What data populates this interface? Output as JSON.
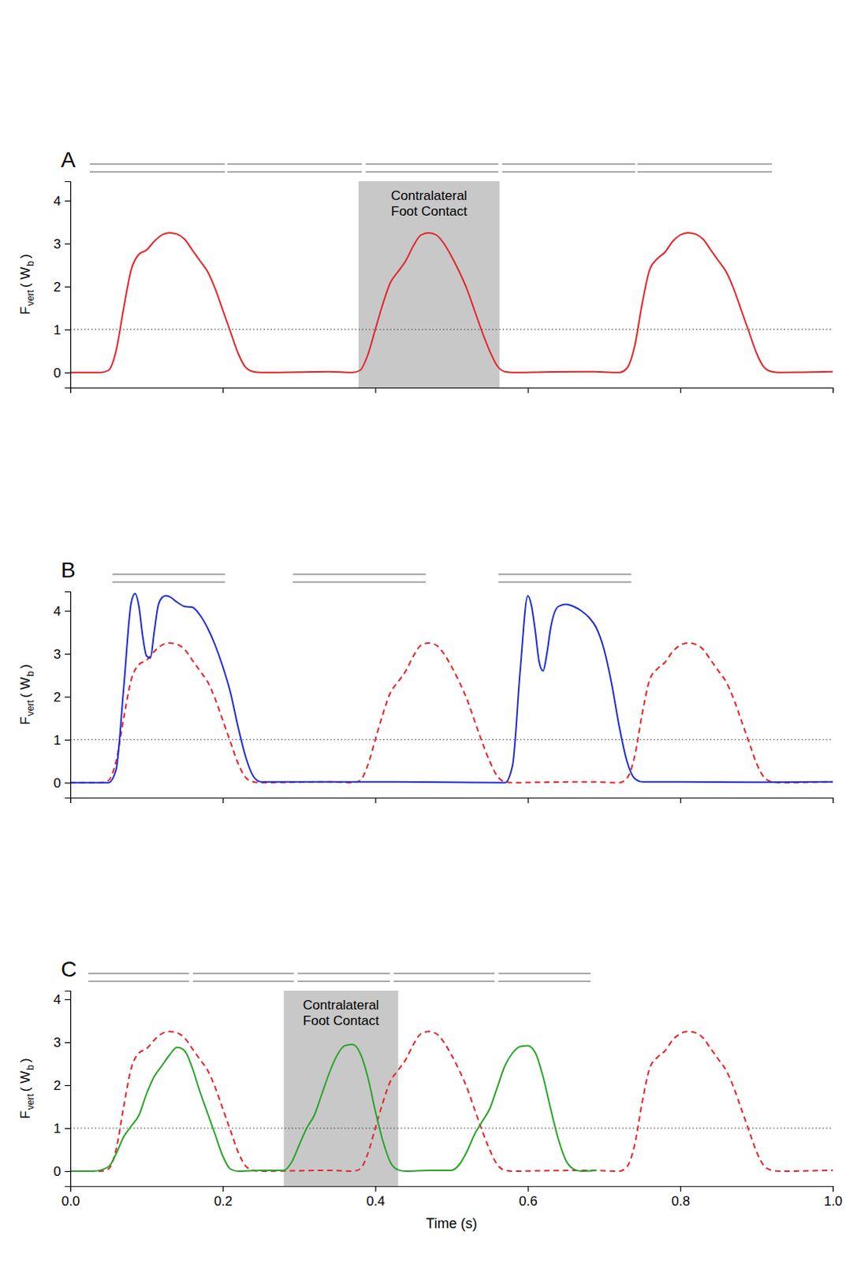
{
  "chart_data": [
    {
      "type": "line",
      "panel": "A",
      "y_label": [
        "F",
        "vert",
        "( W",
        "b",
        ")"
      ],
      "xlim": [
        0,
        1
      ],
      "ylim": [
        -0.35,
        4.45
      ],
      "xticks": [
        0,
        0.2,
        0.4,
        0.6,
        0.8,
        1
      ],
      "yticks": [
        0,
        1,
        2,
        3,
        4
      ],
      "tick_labels": "y",
      "reference_line": 1,
      "annotation": {
        "text": "Contralateral Foot Contact",
        "x": [
          0.378,
          0.563
        ]
      },
      "series": [
        {
          "color": "#e3262b",
          "line_style": "solid",
          "x": [
            0,
            0.04,
            0.05,
            0.06,
            0.07,
            0.08,
            0.09,
            0.1,
            0.11,
            0.12,
            0.13,
            0.14,
            0.15,
            0.16,
            0.17,
            0.18,
            0.19,
            0.2,
            0.21,
            0.22,
            0.23,
            0.24,
            0.25,
            0.3,
            0.34,
            0.37,
            0.38,
            0.39,
            0.4,
            0.41,
            0.42,
            0.43,
            0.44,
            0.45,
            0.46,
            0.47,
            0.48,
            0.49,
            0.5,
            0.51,
            0.52,
            0.53,
            0.54,
            0.55,
            0.56,
            0.57,
            0.58,
            0.62,
            0.68,
            0.72,
            0.73,
            0.74,
            0.75,
            0.76,
            0.77,
            0.78,
            0.79,
            0.8,
            0.81,
            0.82,
            0.83,
            0.84,
            0.85,
            0.86,
            0.87,
            0.88,
            0.89,
            0.9,
            0.91,
            0.92,
            0.93,
            1
          ],
          "values": [
            0,
            0,
            0.05,
            0.5,
            1.5,
            2.4,
            2.75,
            2.85,
            3.05,
            3.2,
            3.25,
            3.22,
            3.1,
            2.85,
            2.6,
            2.35,
            1.95,
            1.45,
            0.95,
            0.45,
            0.12,
            0.02,
            0,
            0.01,
            0.02,
            0,
            0.05,
            0.4,
            1.0,
            1.6,
            2.1,
            2.35,
            2.6,
            2.95,
            3.2,
            3.25,
            3.2,
            3.0,
            2.7,
            2.35,
            1.95,
            1.45,
            0.95,
            0.5,
            0.15,
            0.02,
            0,
            0.01,
            0.02,
            0,
            0.1,
            0.6,
            1.6,
            2.4,
            2.65,
            2.8,
            3.05,
            3.2,
            3.25,
            3.22,
            3.1,
            2.85,
            2.6,
            2.35,
            1.95,
            1.45,
            0.95,
            0.45,
            0.12,
            0.02,
            0,
            0.02
          ]
        }
      ]
    },
    {
      "type": "line",
      "panel": "B",
      "y_label": [
        "F",
        "vert",
        "( W",
        "b",
        ")"
      ],
      "xlim": [
        0,
        1
      ],
      "ylim": [
        -0.35,
        4.45
      ],
      "xticks": [
        0,
        0.2,
        0.4,
        0.6,
        0.8,
        1
      ],
      "yticks": [
        0,
        1,
        2,
        3,
        4
      ],
      "tick_labels": "y",
      "reference_line": 1,
      "series": [
        {
          "color": "#e3262b",
          "line_style": "dashed",
          "x": [
            0,
            0.04,
            0.05,
            0.06,
            0.07,
            0.08,
            0.09,
            0.1,
            0.11,
            0.12,
            0.13,
            0.14,
            0.15,
            0.16,
            0.17,
            0.18,
            0.19,
            0.2,
            0.21,
            0.22,
            0.23,
            0.24,
            0.25,
            0.3,
            0.34,
            0.37,
            0.38,
            0.39,
            0.4,
            0.41,
            0.42,
            0.43,
            0.44,
            0.45,
            0.46,
            0.47,
            0.48,
            0.49,
            0.5,
            0.51,
            0.52,
            0.53,
            0.54,
            0.55,
            0.56,
            0.57,
            0.58,
            0.62,
            0.68,
            0.72,
            0.73,
            0.74,
            0.75,
            0.76,
            0.77,
            0.78,
            0.79,
            0.8,
            0.81,
            0.82,
            0.83,
            0.84,
            0.85,
            0.86,
            0.87,
            0.88,
            0.89,
            0.9,
            0.91,
            0.92,
            0.93,
            1
          ],
          "values": [
            0,
            0,
            0.05,
            0.5,
            1.5,
            2.4,
            2.75,
            2.85,
            3.05,
            3.2,
            3.25,
            3.22,
            3.1,
            2.85,
            2.6,
            2.35,
            1.95,
            1.45,
            0.95,
            0.45,
            0.12,
            0.02,
            0,
            0.01,
            0.02,
            0,
            0.05,
            0.4,
            1.0,
            1.6,
            2.1,
            2.35,
            2.6,
            2.95,
            3.2,
            3.25,
            3.2,
            3.0,
            2.7,
            2.35,
            1.95,
            1.45,
            0.95,
            0.5,
            0.15,
            0.02,
            0,
            0.01,
            0.02,
            0,
            0.1,
            0.6,
            1.6,
            2.4,
            2.65,
            2.8,
            3.05,
            3.2,
            3.25,
            3.22,
            3.1,
            2.85,
            2.6,
            2.35,
            1.95,
            1.45,
            0.95,
            0.45,
            0.12,
            0.02,
            0,
            0.02
          ]
        },
        {
          "color": "#1f2fd0",
          "line_style": "solid",
          "x": [
            0,
            0.05,
            0.06,
            0.07,
            0.08,
            0.085,
            0.09,
            0.095,
            0.1,
            0.105,
            0.11,
            0.115,
            0.12,
            0.125,
            0.13,
            0.14,
            0.15,
            0.16,
            0.17,
            0.18,
            0.19,
            0.2,
            0.21,
            0.22,
            0.23,
            0.24,
            0.25,
            0.3,
            0.4,
            0.5,
            0.57,
            0.58,
            0.59,
            0.6,
            0.605,
            0.61,
            0.615,
            0.62,
            0.625,
            0.63,
            0.64,
            0.65,
            0.66,
            0.67,
            0.68,
            0.69,
            0.7,
            0.71,
            0.72,
            0.73,
            0.74,
            0.75,
            0.8,
            0.9,
            1
          ],
          "values": [
            0,
            0,
            0.3,
            2.2,
            4.2,
            4.4,
            4.1,
            3.4,
            2.95,
            2.9,
            3.5,
            4.1,
            4.3,
            4.35,
            4.33,
            4.2,
            4.1,
            4.08,
            3.9,
            3.6,
            3.2,
            2.7,
            2.1,
            1.3,
            0.6,
            0.15,
            0.02,
            0.02,
            0.02,
            0.01,
            0,
            0.4,
            2.6,
            4.35,
            4.1,
            3.5,
            2.8,
            2.6,
            3.0,
            3.6,
            4.1,
            4.15,
            4.1,
            4.0,
            3.85,
            3.6,
            3.1,
            2.3,
            1.3,
            0.5,
            0.1,
            0.02,
            0.02,
            0.01,
            0.02
          ]
        }
      ]
    },
    {
      "type": "line",
      "panel": "C",
      "y_label": [
        "F",
        "vert",
        "( W",
        "b",
        ")"
      ],
      "x_label": "Time (s)",
      "xlim": [
        0,
        1
      ],
      "ylim": [
        -0.35,
        4.2
      ],
      "xticks": [
        {
          "value": 0,
          "label": "0.0"
        },
        0.2,
        0.4,
        0.6,
        0.8,
        {
          "value": 1,
          "label": "1.0"
        }
      ],
      "yticks": [
        0,
        1,
        2,
        3,
        4
      ],
      "reference_line": 1,
      "annotation": {
        "text": "Contralateral Foot Contact",
        "x": [
          0.28,
          0.43
        ]
      },
      "series": [
        {
          "color": "#e3262b",
          "line_style": "dashed",
          "x": [
            0,
            0.04,
            0.05,
            0.06,
            0.07,
            0.08,
            0.09,
            0.1,
            0.11,
            0.12,
            0.13,
            0.14,
            0.15,
            0.16,
            0.17,
            0.18,
            0.19,
            0.2,
            0.21,
            0.22,
            0.23,
            0.24,
            0.25,
            0.3,
            0.34,
            0.37,
            0.38,
            0.39,
            0.4,
            0.41,
            0.42,
            0.43,
            0.44,
            0.45,
            0.46,
            0.47,
            0.48,
            0.49,
            0.5,
            0.51,
            0.52,
            0.53,
            0.54,
            0.55,
            0.56,
            0.57,
            0.58,
            0.62,
            0.68,
            0.72,
            0.73,
            0.74,
            0.75,
            0.76,
            0.77,
            0.78,
            0.79,
            0.8,
            0.81,
            0.82,
            0.83,
            0.84,
            0.85,
            0.86,
            0.87,
            0.88,
            0.89,
            0.9,
            0.91,
            0.92,
            0.93,
            1
          ],
          "values": [
            0,
            0,
            0.05,
            0.5,
            1.5,
            2.4,
            2.75,
            2.85,
            3.05,
            3.2,
            3.25,
            3.22,
            3.1,
            2.85,
            2.6,
            2.35,
            1.95,
            1.45,
            0.95,
            0.45,
            0.12,
            0.02,
            0,
            0.01,
            0.02,
            0,
            0.05,
            0.4,
            1.0,
            1.6,
            2.1,
            2.35,
            2.6,
            2.95,
            3.2,
            3.25,
            3.2,
            3.0,
            2.7,
            2.35,
            1.95,
            1.45,
            0.95,
            0.5,
            0.15,
            0.02,
            0,
            0.01,
            0.02,
            0,
            0.1,
            0.6,
            1.6,
            2.4,
            2.65,
            2.8,
            3.05,
            3.2,
            3.25,
            3.22,
            3.1,
            2.85,
            2.6,
            2.35,
            1.95,
            1.45,
            0.95,
            0.45,
            0.12,
            0.02,
            0,
            0.02
          ]
        },
        {
          "color": "#2aa52a",
          "line_style": "solid",
          "x": [
            0,
            0.03,
            0.05,
            0.06,
            0.07,
            0.08,
            0.09,
            0.1,
            0.11,
            0.12,
            0.13,
            0.14,
            0.15,
            0.16,
            0.17,
            0.18,
            0.19,
            0.2,
            0.21,
            0.22,
            0.25,
            0.28,
            0.29,
            0.3,
            0.31,
            0.32,
            0.33,
            0.34,
            0.35,
            0.36,
            0.37,
            0.38,
            0.39,
            0.4,
            0.41,
            0.42,
            0.43,
            0.44,
            0.47,
            0.5,
            0.51,
            0.52,
            0.53,
            0.54,
            0.55,
            0.56,
            0.57,
            0.58,
            0.59,
            0.6,
            0.61,
            0.62,
            0.63,
            0.64,
            0.65,
            0.66,
            0.67,
            0.69
          ],
          "values": [
            0,
            0,
            0.1,
            0.4,
            0.8,
            1.05,
            1.3,
            1.8,
            2.2,
            2.45,
            2.7,
            2.88,
            2.8,
            2.4,
            1.85,
            1.35,
            0.85,
            0.35,
            0.05,
            0,
            0.02,
            0.02,
            0.2,
            0.6,
            1.0,
            1.3,
            1.8,
            2.3,
            2.7,
            2.92,
            2.95,
            2.75,
            2.2,
            1.4,
            0.7,
            0.2,
            0.03,
            0,
            0.02,
            0.02,
            0.15,
            0.45,
            0.85,
            1.15,
            1.45,
            1.95,
            2.45,
            2.75,
            2.9,
            2.92,
            2.75,
            2.2,
            1.45,
            0.75,
            0.25,
            0.05,
            0,
            0.02
          ]
        }
      ]
    }
  ]
}
